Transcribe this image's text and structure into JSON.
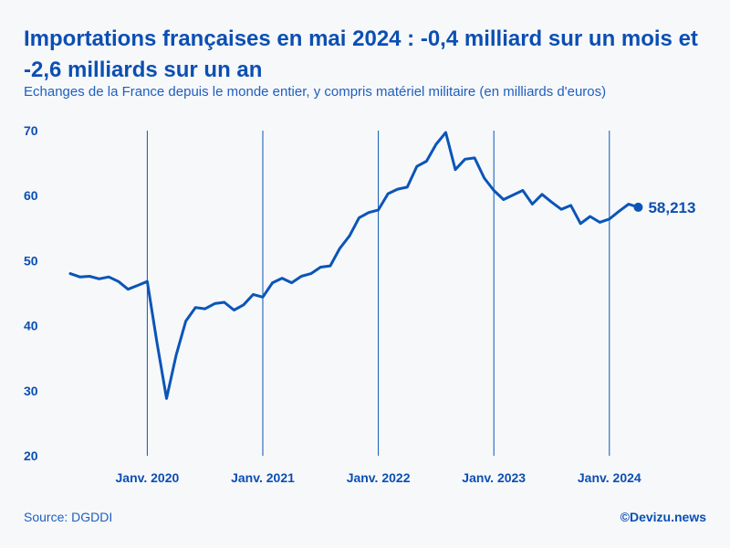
{
  "chart_data": {
    "type": "line",
    "title": "Importations françaises en mai 2024 : -0,4 milliard sur un mois et -2,6 milliards sur un an",
    "subtitle": "Echanges de la France depuis le monde entier, y compris matériel militaire (en milliards d'euros)",
    "xlabel": "",
    "ylabel": "",
    "ylim": [
      20,
      70
    ],
    "yticks": [
      "20",
      "30",
      "40",
      "50",
      "60",
      "70"
    ],
    "xtick_labels": [
      "Janv. 2020",
      "Janv. 2021",
      "Janv. 2022",
      "Janv. 2023",
      "Janv. 2024"
    ],
    "start": "2019-05",
    "series": [
      {
        "name": "Importations",
        "values": [
          48.0,
          47.5,
          47.6,
          47.2,
          47.5,
          46.8,
          45.6,
          46.2,
          46.8,
          37.5,
          28.8,
          35.5,
          40.7,
          42.8,
          42.6,
          43.4,
          43.6,
          42.4,
          43.2,
          44.8,
          44.4,
          46.6,
          47.3,
          46.6,
          47.6,
          48.0,
          49.0,
          49.2,
          51.9,
          53.8,
          56.6,
          57.4,
          57.8,
          60.3,
          61.0,
          61.3,
          64.5,
          65.3,
          67.9,
          69.7,
          64.0,
          65.6,
          65.8,
          62.7,
          60.8,
          59.4,
          60.1,
          60.8,
          58.7,
          60.2,
          59.0,
          57.9,
          58.5,
          55.7,
          56.8,
          55.9,
          56.4,
          57.6,
          58.7,
          58.213
        ],
        "end_label": "58,213"
      }
    ]
  },
  "footer": {
    "source": "Source: DGDDI",
    "brand": "©Devizu.news"
  },
  "colors": {
    "line": "#0a55b8",
    "text": "#0b4fb3",
    "background": "#f7f8fa"
  }
}
